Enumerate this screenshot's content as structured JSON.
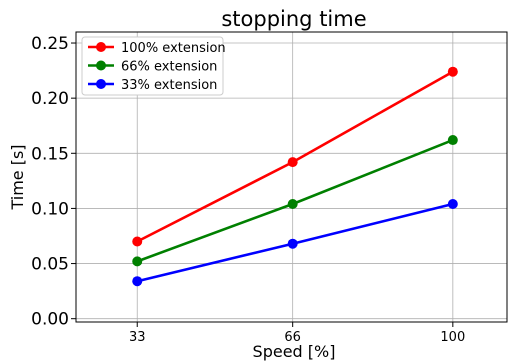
{
  "chart_data": {
    "type": "line",
    "title": "stopping time",
    "xlabel": "Speed [%]",
    "ylabel": "Time [s]",
    "categories": [
      "33",
      "66",
      "100"
    ],
    "x": [
      33,
      66,
      100
    ],
    "xlim": [
      20,
      111.5
    ],
    "ylim": [
      -0.003,
      0.26
    ],
    "yticks": [
      0.0,
      0.05,
      0.1,
      0.15,
      0.2,
      0.25
    ],
    "ytick_labels": [
      "0.00",
      "0.05",
      "0.10",
      "0.15",
      "0.20",
      "0.25"
    ],
    "grid": true,
    "legend_position": "top-left",
    "series": [
      {
        "name": "100% extension",
        "color": "#ff0000",
        "values": [
          0.07,
          0.142,
          0.224
        ]
      },
      {
        "name": "66% extension",
        "color": "#008000",
        "values": [
          0.052,
          0.104,
          0.162
        ]
      },
      {
        "name": "33% extension",
        "color": "#0000ff",
        "values": [
          0.034,
          0.068,
          0.104
        ]
      }
    ]
  }
}
